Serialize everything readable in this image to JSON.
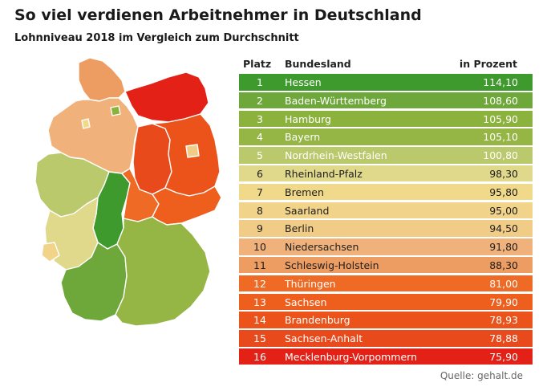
{
  "title": "So viel verdienen Arbeitnehmer in Deutschland",
  "subtitle": "Lohnniveau 2018 im Vergleich zum Durchschnitt",
  "source": "Quelle: gehalt.de",
  "table_header": {
    "rank": "Platz",
    "state": "Bundesland",
    "value": "in Prozent"
  },
  "chart_data": {
    "type": "table",
    "title": "So viel verdienen Arbeitnehmer in Deutschland",
    "subtitle": "Lohnniveau 2018 im Vergleich zum Durchschnitt",
    "columns": [
      "Platz",
      "Bundesland",
      "in Prozent"
    ],
    "rows": [
      {
        "rank": "1",
        "state": "Hessen",
        "value": "114,10",
        "color": "#3f9a2d"
      },
      {
        "rank": "2",
        "state": "Baden-Württemberg",
        "value": "108,60",
        "color": "#6ea83a"
      },
      {
        "rank": "3",
        "state": "Hamburg",
        "value": "105,90",
        "color": "#8cb23e"
      },
      {
        "rank": "4",
        "state": "Bayern",
        "value": "105,10",
        "color": "#95b545"
      },
      {
        "rank": "5",
        "state": "Nordrhein-Westfalen",
        "value": "100,80",
        "color": "#b9c96c"
      },
      {
        "rank": "6",
        "state": "Rheinland-Pfalz",
        "value": "98,30",
        "color": "#e0d88a"
      },
      {
        "rank": "7",
        "state": "Bremen",
        "value": "95,80",
        "color": "#f1d98a"
      },
      {
        "rank": "8",
        "state": "Saarland",
        "value": "95,00",
        "color": "#f1d38a"
      },
      {
        "rank": "9",
        "state": "Berlin",
        "value": "94,50",
        "color": "#f1cc86"
      },
      {
        "rank": "10",
        "state": "Niedersachsen",
        "value": "91,80",
        "color": "#f0b27a"
      },
      {
        "rank": "11",
        "state": "Schleswig-Holstein",
        "value": "88,30",
        "color": "#ee9d62"
      },
      {
        "rank": "12",
        "state": "Thüringen",
        "value": "81,00",
        "color": "#ee6a25"
      },
      {
        "rank": "13",
        "state": "Sachsen",
        "value": "79,90",
        "color": "#ee5f1e"
      },
      {
        "rank": "14",
        "state": "Brandenburg",
        "value": "78,93",
        "color": "#ec531b"
      },
      {
        "rank": "15",
        "state": "Sachsen-Anhalt",
        "value": "78,88",
        "color": "#e94a1b"
      },
      {
        "rank": "16",
        "state": "Mecklenburg-Vorpommern",
        "value": "75,90",
        "color": "#e42116"
      }
    ]
  }
}
